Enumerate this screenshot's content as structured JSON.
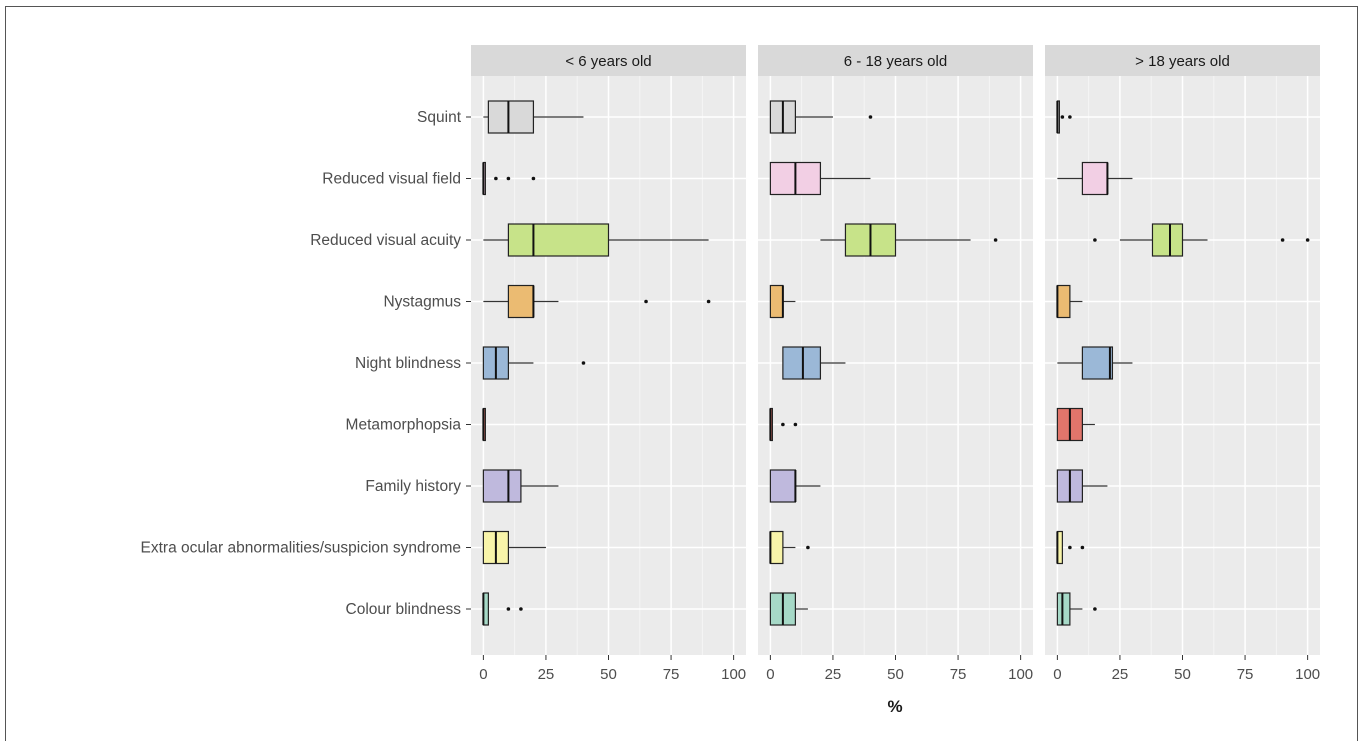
{
  "chart_data": {
    "type": "boxplot",
    "facets": [
      "< 6 years old",
      "6 - 18 years old",
      "> 18 years old"
    ],
    "categories": [
      "Squint",
      "Reduced visual field",
      "Reduced visual acuity",
      "Nystagmus",
      "Night blindness",
      "Metamorphopsia",
      "Family history",
      "Extra ocular abnormalities/suspicion syndrome",
      "Colour blindness"
    ],
    "xlabel": "%",
    "ylabel": "",
    "xlim": [
      0,
      100
    ],
    "xticks": [
      0,
      25,
      50,
      75,
      100
    ],
    "grid": true,
    "colors": {
      "Squint": "#d9d9d9",
      "Reduced visual field": "#f2cfe4",
      "Reduced visual acuity": "#c7e389",
      "Nystagmus": "#ebbb72",
      "Night blindness": "#9bb8d7",
      "Metamorphopsia": "#e1756b",
      "Family history": "#bfb9dd",
      "Extra ocular abnormalities/suspicion syndrome": "#f8f4a9",
      "Colour blindness": "#a6d9c7"
    },
    "boxes": [
      {
        "facet": "< 6 years old",
        "category": "Squint",
        "whisker_low": 0,
        "q1": 2,
        "median": 10,
        "q3": 20,
        "whisker_high": 40,
        "outliers": []
      },
      {
        "facet": "< 6 years old",
        "category": "Reduced visual field",
        "whisker_low": 0,
        "q1": 0,
        "median": 0,
        "q3": 0,
        "whisker_high": 0,
        "outliers": [
          5,
          10,
          20
        ]
      },
      {
        "facet": "< 6 years old",
        "category": "Reduced visual acuity",
        "whisker_low": 0,
        "q1": 10,
        "median": 20,
        "q3": 50,
        "whisker_high": 90,
        "outliers": []
      },
      {
        "facet": "< 6 years old",
        "category": "Nystagmus",
        "whisker_low": 0,
        "q1": 10,
        "median": 20,
        "q3": 20,
        "whisker_high": 30,
        "outliers": [
          65,
          90
        ]
      },
      {
        "facet": "< 6 years old",
        "category": "Night blindness",
        "whisker_low": 0,
        "q1": 0,
        "median": 5,
        "q3": 10,
        "whisker_high": 20,
        "outliers": [
          40
        ]
      },
      {
        "facet": "< 6 years old",
        "category": "Metamorphopsia",
        "whisker_low": 0,
        "q1": 0,
        "median": 0,
        "q3": 0,
        "whisker_high": 0,
        "outliers": []
      },
      {
        "facet": "< 6 years old",
        "category": "Family history",
        "whisker_low": 0,
        "q1": 0,
        "median": 10,
        "q3": 15,
        "whisker_high": 30,
        "outliers": []
      },
      {
        "facet": "< 6 years old",
        "category": "Extra ocular abnormalities/suspicion syndrome",
        "whisker_low": 0,
        "q1": 0,
        "median": 5,
        "q3": 10,
        "whisker_high": 25,
        "outliers": []
      },
      {
        "facet": "< 6 years old",
        "category": "Colour blindness",
        "whisker_low": 0,
        "q1": 0,
        "median": 0,
        "q3": 2,
        "whisker_high": 2,
        "outliers": [
          10,
          15
        ]
      },
      {
        "facet": "6 - 18 years old",
        "category": "Squint",
        "whisker_low": 0,
        "q1": 0,
        "median": 5,
        "q3": 10,
        "whisker_high": 25,
        "outliers": [
          40
        ]
      },
      {
        "facet": "6 - 18 years old",
        "category": "Reduced visual field",
        "whisker_low": 0,
        "q1": 0,
        "median": 10,
        "q3": 20,
        "whisker_high": 40,
        "outliers": []
      },
      {
        "facet": "6 - 18 years old",
        "category": "Reduced visual acuity",
        "whisker_low": 20,
        "q1": 30,
        "median": 40,
        "q3": 50,
        "whisker_high": 80,
        "outliers": [
          90
        ]
      },
      {
        "facet": "6 - 18 years old",
        "category": "Nystagmus",
        "whisker_low": 0,
        "q1": 0,
        "median": 5,
        "q3": 5,
        "whisker_high": 10,
        "outliers": []
      },
      {
        "facet": "6 - 18 years old",
        "category": "Night blindness",
        "whisker_low": 5,
        "q1": 5,
        "median": 13,
        "q3": 20,
        "whisker_high": 30,
        "outliers": []
      },
      {
        "facet": "6 - 18 years old",
        "category": "Metamorphopsia",
        "whisker_low": 0,
        "q1": 0,
        "median": 0,
        "q3": 0,
        "whisker_high": 0,
        "outliers": [
          5,
          10
        ]
      },
      {
        "facet": "6 - 18 years old",
        "category": "Family history",
        "whisker_low": 0,
        "q1": 0,
        "median": 10,
        "q3": 10,
        "whisker_high": 20,
        "outliers": []
      },
      {
        "facet": "6 - 18 years old",
        "category": "Extra ocular abnormalities/suspicion syndrome",
        "whisker_low": 0,
        "q1": 0,
        "median": 0,
        "q3": 5,
        "whisker_high": 10,
        "outliers": [
          15
        ]
      },
      {
        "facet": "6 - 18 years old",
        "category": "Colour blindness",
        "whisker_low": 0,
        "q1": 0,
        "median": 5,
        "q3": 10,
        "whisker_high": 15,
        "outliers": []
      },
      {
        "facet": "> 18 years old",
        "category": "Squint",
        "whisker_low": 0,
        "q1": 0,
        "median": 0,
        "q3": 0,
        "whisker_high": 0,
        "outliers": [
          2,
          5
        ]
      },
      {
        "facet": "> 18 years old",
        "category": "Reduced visual field",
        "whisker_low": 0,
        "q1": 10,
        "median": 20,
        "q3": 20,
        "whisker_high": 30,
        "outliers": []
      },
      {
        "facet": "> 18 years old",
        "category": "Reduced visual acuity",
        "whisker_low": 25,
        "q1": 38,
        "median": 45,
        "q3": 50,
        "whisker_high": 60,
        "outliers": [
          15,
          90,
          100
        ]
      },
      {
        "facet": "> 18 years old",
        "category": "Nystagmus",
        "whisker_low": 0,
        "q1": 0,
        "median": 0,
        "q3": 5,
        "whisker_high": 10,
        "outliers": []
      },
      {
        "facet": "> 18 years old",
        "category": "Night blindness",
        "whisker_low": 0,
        "q1": 10,
        "median": 21,
        "q3": 22,
        "whisker_high": 30,
        "outliers": []
      },
      {
        "facet": "> 18 years old",
        "category": "Metamorphopsia",
        "whisker_low": 0,
        "q1": 0,
        "median": 5,
        "q3": 10,
        "whisker_high": 15,
        "outliers": []
      },
      {
        "facet": "> 18 years old",
        "category": "Family history",
        "whisker_low": 0,
        "q1": 0,
        "median": 5,
        "q3": 10,
        "whisker_high": 20,
        "outliers": []
      },
      {
        "facet": "> 18 years old",
        "category": "Extra ocular abnormalities/suspicion syndrome",
        "whisker_low": 0,
        "q1": 0,
        "median": 0,
        "q3": 2,
        "whisker_high": 2,
        "outliers": [
          5,
          10
        ]
      },
      {
        "facet": "> 18 years old",
        "category": "Colour blindness",
        "whisker_low": 0,
        "q1": 0,
        "median": 2,
        "q3": 5,
        "whisker_high": 10,
        "outliers": [
          15
        ]
      }
    ]
  }
}
